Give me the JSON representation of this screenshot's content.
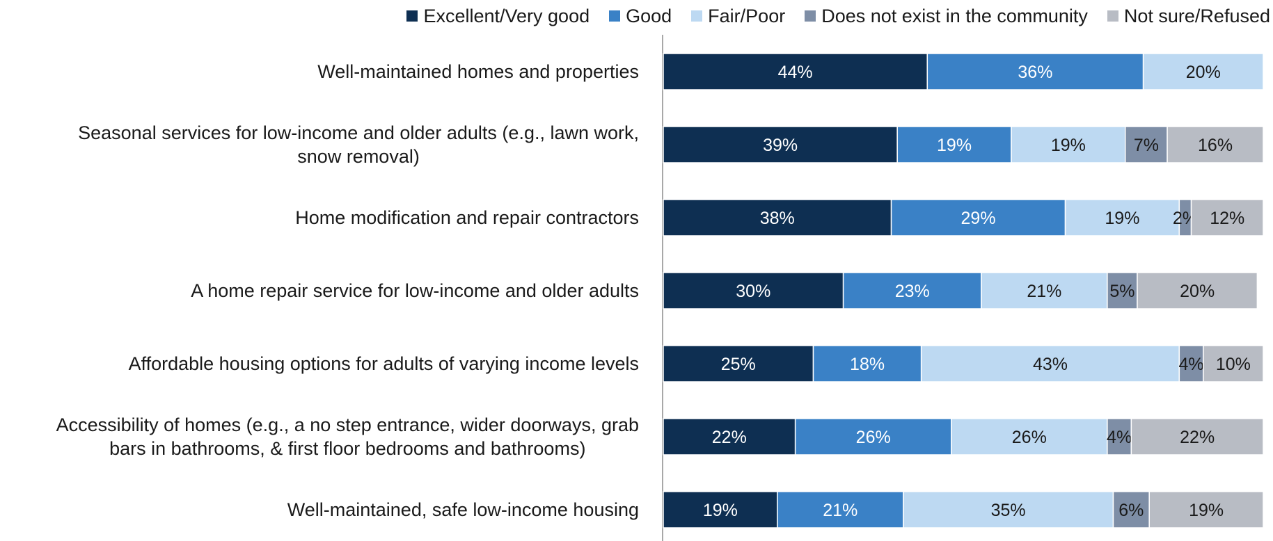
{
  "chart_data": {
    "type": "bar",
    "orientation": "horizontal",
    "stacked": true,
    "percent_stacked": true,
    "title": "",
    "xlabel": "",
    "ylabel": "",
    "xlim": [
      0,
      100
    ],
    "grid": false,
    "legend_position": "top",
    "categories": [
      [
        "Well-maintained homes and properties"
      ],
      [
        "Seasonal services for low-income and older adults (e.g., lawn work,",
        "snow removal)"
      ],
      [
        "Home modification and repair contractors"
      ],
      [
        "A home repair service for low-income and older adults"
      ],
      [
        "Affordable housing options for adults of varying income levels"
      ],
      [
        "Accessibility of homes (e.g., a no step entrance, wider doorways, grab",
        "bars in bathrooms, & first floor bedrooms and bathrooms)"
      ],
      [
        "Well-maintained, safe low-income housing"
      ]
    ],
    "series": [
      {
        "name": "Excellent/Very good",
        "color": "#0e2f52",
        "label_color": "#ffffff",
        "values": [
          44,
          39,
          38,
          30,
          25,
          22,
          19
        ]
      },
      {
        "name": "Good",
        "color": "#3a81c6",
        "label_color": "#ffffff",
        "values": [
          36,
          19,
          29,
          23,
          18,
          26,
          21
        ]
      },
      {
        "name": "Fair/Poor",
        "color": "#bdd9f2",
        "label_color": "#1a1a1a",
        "values": [
          20,
          19,
          19,
          21,
          43,
          26,
          35
        ]
      },
      {
        "name": "Does not exist in the community",
        "color": "#7e8ea6",
        "label_color": "#1a1a1a",
        "values": [
          0,
          7,
          2,
          5,
          4,
          4,
          6
        ]
      },
      {
        "name": "Not sure/Refused",
        "color": "#b8bcc4",
        "label_color": "#1a1a1a",
        "values": [
          0,
          16,
          12,
          20,
          10,
          22,
          19
        ]
      }
    ],
    "value_suffix": "%"
  }
}
